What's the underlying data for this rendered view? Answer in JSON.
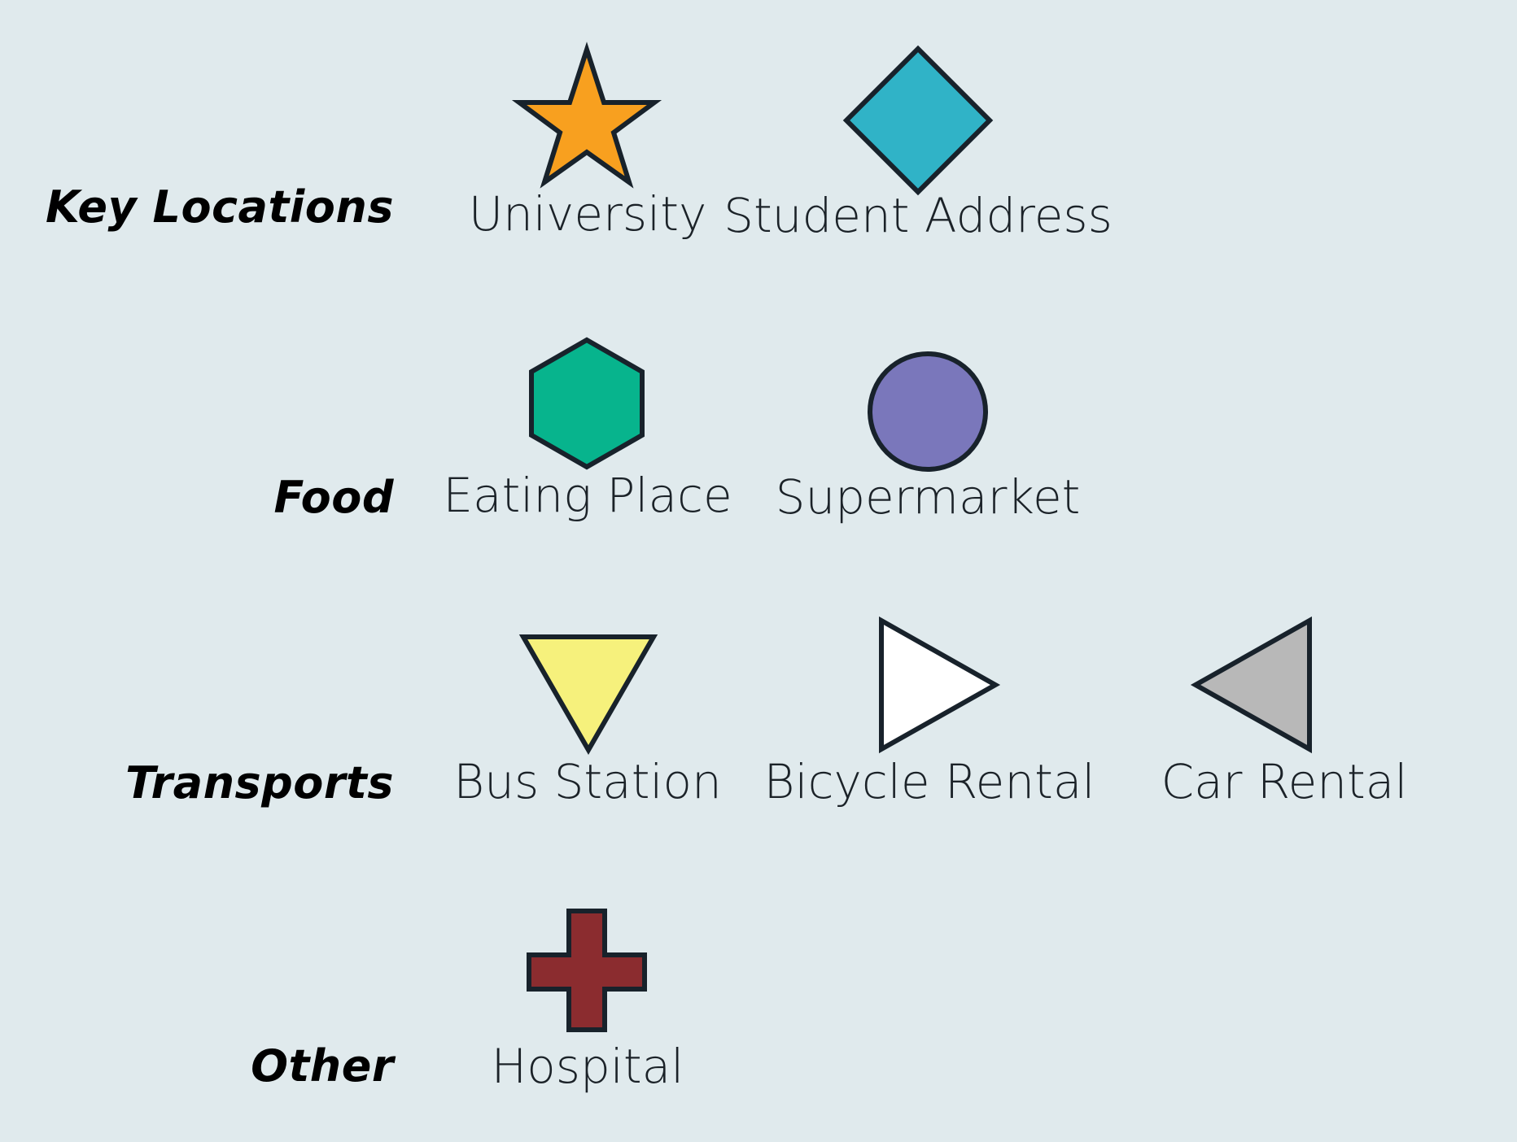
{
  "legend": {
    "categories": [
      {
        "label": "Key Locations"
      },
      {
        "label": "Food"
      },
      {
        "label": "Transports"
      },
      {
        "label": "Other"
      }
    ],
    "items": [
      {
        "label": "University",
        "icon": "star-icon",
        "color": "#f8a01f"
      },
      {
        "label": "Student Address",
        "icon": "diamond-icon",
        "color": "#30b3c7"
      },
      {
        "label": "Eating Place",
        "icon": "hexagon-icon",
        "color": "#07b48d"
      },
      {
        "label": "Supermarket",
        "icon": "circle-icon",
        "color": "#7a77bb"
      },
      {
        "label": "Bus Station",
        "icon": "triangle-down-icon",
        "color": "#f6f17c"
      },
      {
        "label": "Bicycle Rental",
        "icon": "triangle-right-icon",
        "color": "#ffffff"
      },
      {
        "label": "Car Rental",
        "icon": "triangle-left-icon",
        "color": "#b8b8b8"
      },
      {
        "label": "Hospital",
        "icon": "cross-icon",
        "color": "#8b2c2f"
      }
    ],
    "stroke_color": "#18222b"
  }
}
